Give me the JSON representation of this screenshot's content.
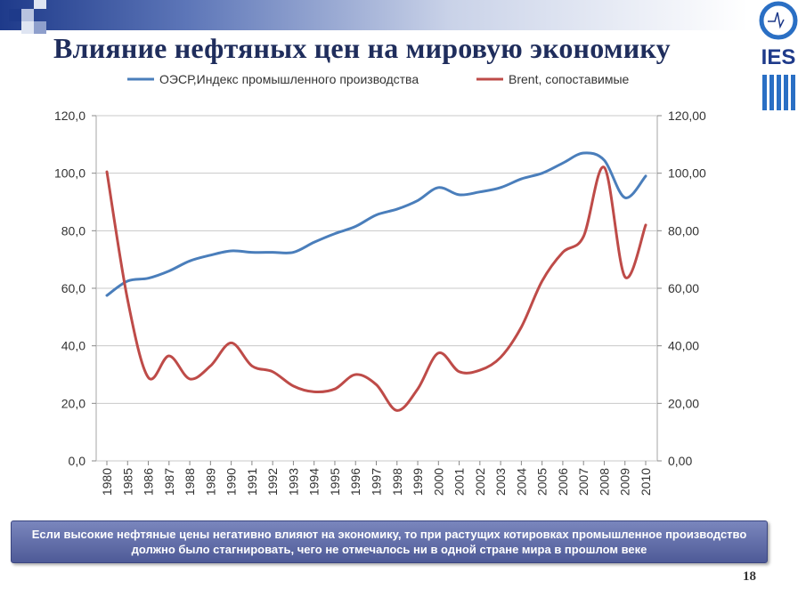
{
  "slide": {
    "title": "Влияние нефтяных цен на мировую экономику",
    "caption": "Если высокие нефтяные цены негативно влияют на экономику, то при растущих котировках промышленное производство должно было стагнировать, чего не отмечалось ни в одной стране мира в прошлом веке",
    "page_number": "18",
    "logo_text": "IES"
  },
  "colors": {
    "series_oecd": "#4a7ebb",
    "series_brent": "#be4b48",
    "title": "#1f2d5c",
    "caption_bg": "#5e6aa8",
    "grid": "#c8c8c8"
  },
  "chart_data": {
    "type": "line",
    "title": "",
    "xlabel": "",
    "ylabel": "",
    "categories": [
      "1980",
      "1985",
      "1986",
      "1987",
      "1988",
      "1989",
      "1990",
      "1991",
      "1992",
      "1993",
      "1994",
      "1995",
      "1996",
      "1997",
      "1998",
      "1999",
      "2000",
      "2001",
      "2002",
      "2003",
      "2004",
      "2005",
      "2006",
      "2007",
      "2008",
      "2009",
      "2010"
    ],
    "left_axis": {
      "ylim": [
        0,
        120
      ],
      "ticks": [
        "0,0",
        "20,0",
        "40,0",
        "60,0",
        "80,0",
        "100,0",
        "120,0"
      ]
    },
    "right_axis": {
      "ylim": [
        0,
        120
      ],
      "ticks": [
        "0,00",
        "20,00",
        "40,00",
        "60,00",
        "80,00",
        "100,00",
        "120,00"
      ]
    },
    "series": [
      {
        "name": "ОЭСР,Индекс промышленного производства",
        "axis": "left",
        "values": [
          57.5,
          62.5,
          63.5,
          66.0,
          69.5,
          71.5,
          73.0,
          72.5,
          72.5,
          72.5,
          76.0,
          79.0,
          81.5,
          85.5,
          87.5,
          90.5,
          95.0,
          92.5,
          93.5,
          95.0,
          98.0,
          100.0,
          103.5,
          107.0,
          104.5,
          91.5,
          99.0
        ]
      },
      {
        "name": "Brent, сопоставимые",
        "axis": "right",
        "values": [
          100.5,
          56.0,
          29.0,
          36.5,
          28.5,
          33.0,
          41.0,
          33.0,
          31.0,
          26.0,
          24.0,
          25.0,
          30.0,
          26.5,
          17.5,
          25.0,
          37.5,
          31.0,
          31.5,
          36.0,
          46.5,
          62.5,
          72.5,
          78.0,
          102.0,
          64.0,
          82.0
        ]
      }
    ],
    "legend": "top",
    "grid": "horizontal"
  }
}
